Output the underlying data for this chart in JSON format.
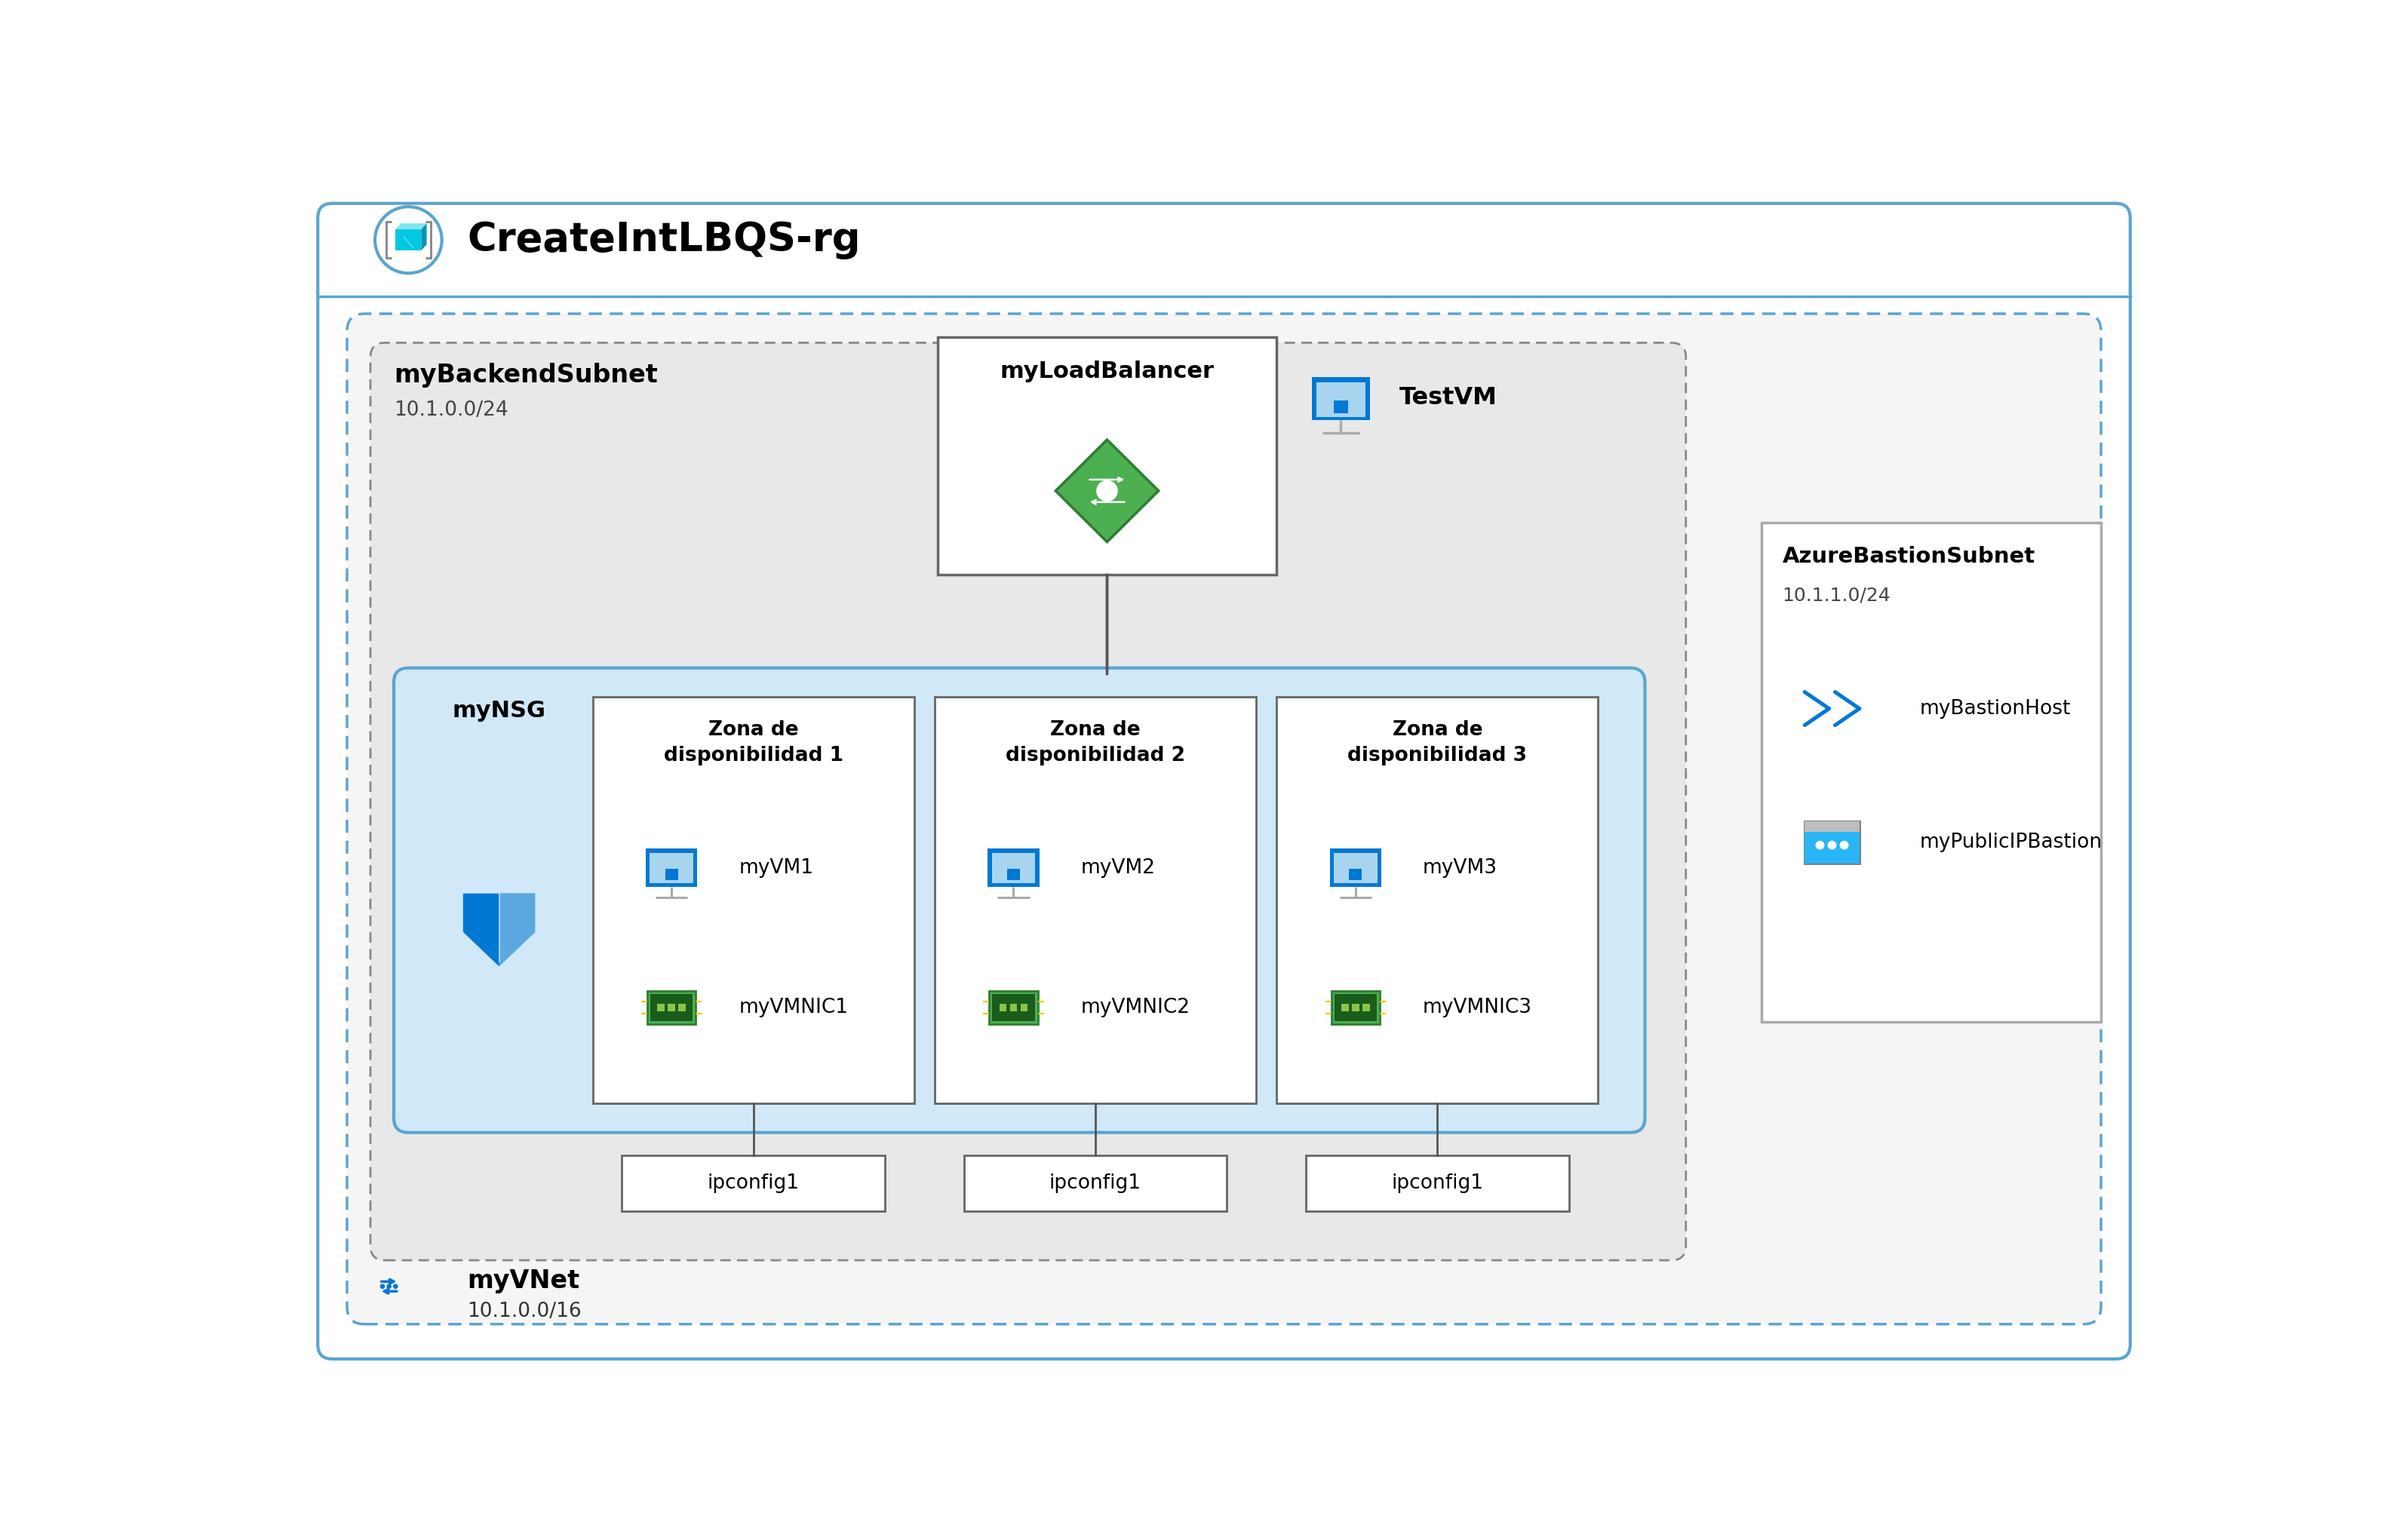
{
  "title": "CreateIntLBQS-rg",
  "bg_color": "#ffffff",
  "rg_border_color": "#5ba4cf",
  "vnet_label": "myVNet",
  "vnet_cidr": "10.1.0.0/16",
  "vnet_border_color": "#5ba4cf",
  "subnet_label": "myBackendSubnet",
  "subnet_cidr": "10.1.0.0/24",
  "subnet_fill": "#e2e2e2",
  "subnet_border_color": "#888888",
  "bastion_subnet_label": "AzureBastionSubnet",
  "bastion_subnet_cidr": "10.1.1.0/24",
  "nsg_inner_fill": "#d0e8f8",
  "nsg_inner_border_color": "#5ba4cf",
  "zone_fill": "#ffffff",
  "zone_border_color": "#666666",
  "ipconfig_fill": "#ffffff",
  "ipconfig_border_color": "#666666",
  "lb_box_fill": "#ffffff",
  "lb_box_border_color": "#666666",
  "bastion_box_fill": "#ffffff",
  "bastion_box_border_color": "#999999",
  "zone_labels": [
    "Zona de\ndisponibilidad 1",
    "Zona de\ndisponibilidad 2",
    "Zona de\ndisponibilidad 3"
  ],
  "vm_labels": [
    "myVM1",
    "myVM2",
    "myVM3"
  ],
  "nic_labels": [
    "myVMNIC1",
    "myVMNIC2",
    "myVMNIC3"
  ],
  "ipconfig_labels": [
    "ipconfig1",
    "ipconfig1",
    "ipconfig1"
  ],
  "lb_label": "myLoadBalancer",
  "testvm_label": "TestVM",
  "nsg_label": "myNSG",
  "bastion_host_label": "myBastionHost",
  "bastion_ip_label": "myPublicIPBastion",
  "azure_blue": "#0078d4",
  "lb_green": "#4caf50",
  "lb_green_dark": "#2d7d32",
  "text_black": "#000000",
  "text_gray": "#444444",
  "shield_blue": "#0078d4",
  "shield_light": "#50b0e8"
}
